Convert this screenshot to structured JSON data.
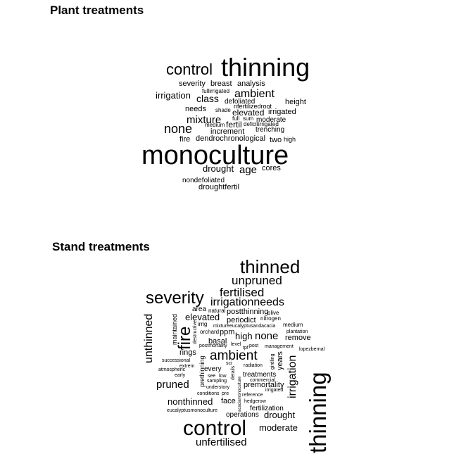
{
  "panels": [
    {
      "title": "Plant treatments",
      "words": [
        "thinning",
        "control",
        "monoculture",
        "none",
        "mixture",
        "ambient",
        "class",
        "irrigation",
        "analysis",
        "severity",
        "breast",
        "fullirrigated",
        "defoliated",
        "height",
        "needs",
        "shade",
        "nfertilizedroot",
        "elevated",
        "irrigated",
        "full",
        "sum",
        "moderate",
        "medium",
        "fertil",
        "deficitirrigated",
        "increment",
        "trenching",
        "fire",
        "dendrochronological",
        "two",
        "high",
        "drought",
        "age",
        "cores",
        "nondefoliated",
        "droughtfertil"
      ]
    },
    {
      "title": "Stand treatments",
      "words": [
        "thinned",
        "unpruned",
        "severity",
        "fertilised",
        "irrigationneeds",
        "unthinned",
        "maintained",
        "fire",
        "area",
        "natural",
        "postthinning",
        "olive",
        "elevated",
        "irrig",
        "periodict",
        "nitrogen",
        "destructive",
        "orchard",
        "ppm",
        "mixtureeucalyptusandacacia",
        "medium",
        "plantation",
        "high",
        "none",
        "remove",
        "postmortality",
        "basal",
        "level",
        "post",
        "management",
        "lopezbernal",
        "rings",
        "tpf",
        "ambient",
        "successional",
        "extrem",
        "sci",
        "radiation",
        "girdling",
        "years",
        "irrigation",
        "thinning",
        "atmospheric",
        "every",
        "details",
        "early",
        "prethinning",
        "see",
        "low",
        "treatments",
        "sampling",
        "commercial",
        "pruned",
        "understory",
        "acaciamonoculture",
        "premortality",
        "irrigated",
        "conditions",
        "pre",
        "reference",
        "nonthinned",
        "face",
        "hedgerow",
        "eucalyptusmonoculture",
        "fertilization",
        "operations",
        "drought",
        "control",
        "moderate",
        "unfertilised"
      ]
    }
  ]
}
